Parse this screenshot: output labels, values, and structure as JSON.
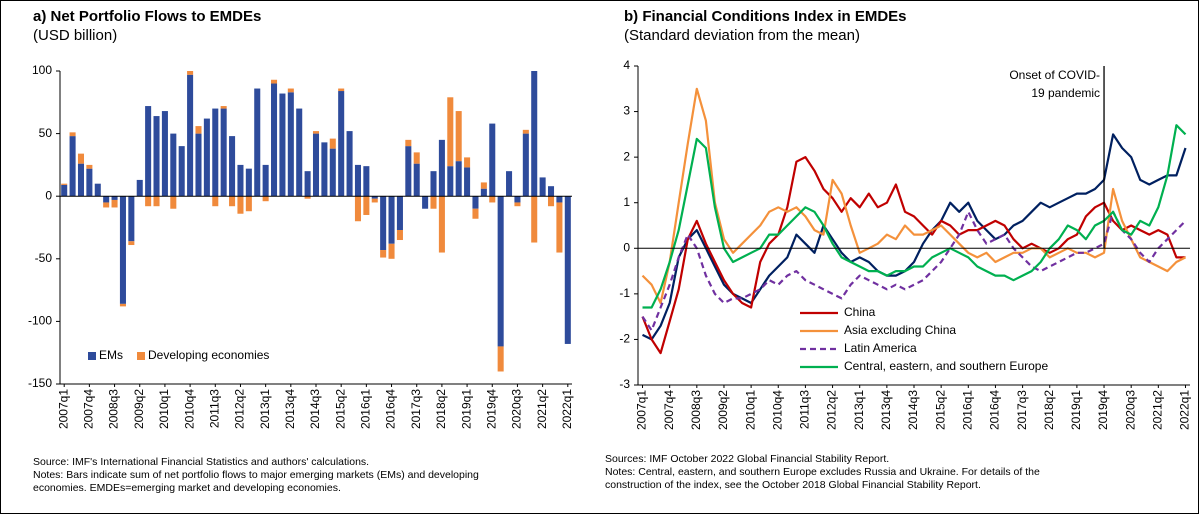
{
  "chart_data": [
    {
      "type": "stacked_bar",
      "title": "a) Net Portfolio Flows to EMDEs",
      "subtitle": "(USD billion)",
      "source": "Source: IMF's International Financial Statistics and authors' calculations.",
      "notes": "Notes: Bars indicate sum of net portfolio flows to major emerging markets (EMs) and developing economies. EMDEs=emerging market and developing economies.",
      "categories": [
        "2007q1",
        null,
        null,
        "2007q4",
        null,
        null,
        "2008q3",
        null,
        null,
        "2009q2",
        null,
        null,
        "2010q1",
        null,
        null,
        "2010q4",
        null,
        null,
        "2011q3",
        null,
        null,
        "2012q2",
        null,
        null,
        "2013q1",
        null,
        null,
        "2013q4",
        null,
        null,
        "2014q3",
        null,
        null,
        "2015q2",
        null,
        null,
        "2016q1",
        null,
        null,
        "2016q4",
        null,
        null,
        "2017q3",
        null,
        null,
        "2018q2",
        null,
        null,
        "2019q1",
        null,
        null,
        "2019q4",
        null,
        null,
        "2020q3",
        null,
        null,
        "2021q2",
        null,
        null,
        "2022q1"
      ],
      "series": [
        {
          "name": "EMs",
          "color": "#2e4b9b",
          "values": [
            9,
            48,
            26,
            22,
            10,
            -5,
            -3,
            -86,
            -36,
            13,
            72,
            64,
            68,
            50,
            40,
            97,
            50,
            62,
            70,
            70,
            48,
            25,
            22,
            86,
            25,
            90,
            82,
            83,
            70,
            20,
            50,
            43,
            38,
            84,
            52,
            25,
            24,
            -2,
            -43,
            -38,
            -27,
            40,
            26,
            -10,
            20,
            45,
            24,
            28,
            23,
            -10,
            6,
            58,
            -120,
            20,
            -5,
            50,
            100,
            15,
            8,
            -5,
            -118
          ]
        },
        {
          "name": "Developing economies",
          "color": "#f08a3c",
          "values": [
            1,
            3,
            8,
            3,
            0,
            -4,
            -6,
            -2,
            -3,
            0,
            -8,
            -8,
            0,
            -10,
            0,
            3,
            6,
            0,
            -8,
            2,
            -8,
            -14,
            -12,
            0,
            -4,
            3,
            0,
            3,
            0,
            -2,
            2,
            0,
            8,
            2,
            0,
            -20,
            -15,
            -3,
            -6,
            -12,
            -8,
            5,
            9,
            0,
            -10,
            -45,
            55,
            40,
            8,
            -8,
            5,
            -5,
            -20,
            0,
            -3,
            3,
            -37,
            0,
            -8,
            -40,
            0
          ]
        }
      ],
      "ylim": [
        -150,
        100
      ],
      "yticks": [
        -150,
        -100,
        -50,
        0,
        50,
        100
      ],
      "legend": "lower left"
    },
    {
      "type": "line",
      "title": "b) Financial Conditions Index in EMDEs",
      "subtitle": "(Standard deviation from the mean)",
      "source": "Sources: IMF October 2022 Global Financial Stability Report.",
      "notes": "Notes: Central, eastern, and southern Europe excludes Russia and Ukraine. For details of the construction of the index, see the October 2018 Global Financial Stability Report.",
      "categories": [
        "2007q1",
        null,
        null,
        "2007q4",
        null,
        null,
        "2008q3",
        null,
        null,
        "2009q2",
        null,
        null,
        "2010q1",
        null,
        null,
        "2010q4",
        null,
        null,
        "2011q3",
        null,
        null,
        "2012q2",
        null,
        null,
        "2013q1",
        null,
        null,
        "2013q4",
        null,
        null,
        "2014q3",
        null,
        null,
        "2015q2",
        null,
        null,
        "2016q1",
        null,
        null,
        "2016q4",
        null,
        null,
        "2017q3",
        null,
        null,
        "2018q2",
        null,
        null,
        "2019q1",
        null,
        null,
        "2019q4",
        null,
        null,
        "2020q3",
        null,
        null,
        "2021q2",
        null,
        null,
        "2022q1"
      ],
      "series": [
        {
          "color": "#002060",
          "values": [
            -1.9,
            -2.0,
            -1.7,
            -1.2,
            -0.2,
            0.2,
            0.4,
            0.0,
            -0.4,
            -0.8,
            -1.0,
            -1.1,
            -1.2,
            -0.9,
            -0.6,
            -0.4,
            -0.2,
            0.3,
            0.1,
            -0.1,
            0.5,
            0.2,
            -0.1,
            -0.3,
            -0.2,
            -0.3,
            -0.5,
            -0.6,
            -0.6,
            -0.5,
            -0.3,
            0.1,
            0.4,
            0.6,
            1.0,
            0.8,
            1.0,
            0.6,
            0.4,
            0.2,
            0.3,
            0.5,
            0.6,
            0.8,
            1.0,
            0.9,
            1.0,
            1.1,
            1.2,
            1.2,
            1.3,
            1.5,
            2.5,
            2.2,
            2.0,
            1.5,
            1.4,
            1.5,
            1.6,
            1.6,
            2.2
          ]
        },
        {
          "name": "China",
          "color": "#c00000",
          "values": [
            -1.5,
            -2.0,
            -2.3,
            -1.6,
            -0.9,
            0.2,
            0.6,
            0.1,
            -0.3,
            -0.7,
            -1.0,
            -1.2,
            -1.3,
            -0.3,
            0.1,
            0.3,
            0.9,
            1.9,
            2.0,
            1.7,
            1.3,
            1.1,
            0.8,
            1.1,
            0.9,
            1.2,
            0.9,
            1.0,
            1.4,
            0.8,
            0.7,
            0.5,
            0.3,
            0.6,
            0.5,
            0.3,
            0.4,
            0.4,
            0.5,
            0.6,
            0.5,
            0.2,
            0.0,
            0.1,
            0.0,
            -0.1,
            0.0,
            0.2,
            0.3,
            0.7,
            0.9,
            1.0,
            0.6,
            0.4,
            0.5,
            0.4,
            0.3,
            0.4,
            0.3,
            -0.2,
            -0.2
          ]
        },
        {
          "name": "Asia excluding China",
          "color": "#f4913b",
          "values": [
            -0.6,
            -0.8,
            -1.2,
            -0.3,
            1.0,
            2.3,
            3.5,
            2.8,
            1.0,
            0.2,
            -0.1,
            0.1,
            0.3,
            0.5,
            0.8,
            0.9,
            0.8,
            0.9,
            0.7,
            0.4,
            0.3,
            1.5,
            1.2,
            0.5,
            -0.1,
            0.0,
            0.1,
            0.3,
            0.2,
            0.5,
            0.3,
            0.3,
            0.4,
            0.5,
            0.3,
            0.1,
            -0.1,
            -0.2,
            -0.1,
            -0.3,
            -0.2,
            -0.1,
            -0.1,
            0.0,
            0.0,
            -0.2,
            -0.1,
            0.0,
            -0.1,
            -0.1,
            -0.2,
            -0.1,
            1.3,
            0.6,
            0.2,
            -0.2,
            -0.3,
            -0.4,
            -0.5,
            -0.3,
            -0.2
          ]
        },
        {
          "name": "Latin America",
          "color": "#7030a0",
          "dash": true,
          "values": [
            -1.5,
            -1.8,
            -1.3,
            -0.8,
            -0.2,
            0.3,
            0.0,
            -0.6,
            -1.0,
            -1.2,
            -1.1,
            -1.1,
            -1.0,
            -0.9,
            -0.7,
            -0.8,
            -0.6,
            -0.5,
            -0.7,
            -0.8,
            -0.9,
            -1.0,
            -1.1,
            -0.8,
            -0.6,
            -0.7,
            -0.8,
            -0.9,
            -0.8,
            -0.9,
            -0.8,
            -0.7,
            -0.5,
            -0.3,
            0.0,
            0.3,
            0.8,
            0.4,
            0.1,
            0.2,
            0.3,
            0.0,
            -0.2,
            -0.4,
            -0.5,
            -0.4,
            -0.3,
            -0.2,
            -0.1,
            -0.1,
            0.0,
            0.1,
            0.8,
            0.4,
            0.2,
            -0.1,
            -0.3,
            0.0,
            0.2,
            0.4,
            0.6
          ]
        },
        {
          "name": "Central, eastern, and southern Europe",
          "color": "#00b050",
          "values": [
            -1.3,
            -1.3,
            -0.9,
            -0.3,
            0.4,
            1.4,
            2.4,
            2.2,
            0.9,
            0.0,
            -0.3,
            -0.2,
            -0.1,
            0.0,
            0.3,
            0.3,
            0.5,
            0.7,
            0.9,
            0.8,
            0.5,
            0.1,
            -0.2,
            -0.3,
            -0.4,
            -0.5,
            -0.5,
            -0.6,
            -0.5,
            -0.5,
            -0.4,
            -0.4,
            -0.2,
            -0.1,
            0.0,
            -0.1,
            -0.2,
            -0.4,
            -0.5,
            -0.6,
            -0.6,
            -0.7,
            -0.6,
            -0.5,
            -0.3,
            0.0,
            0.2,
            0.5,
            0.4,
            0.2,
            0.5,
            0.6,
            0.8,
            0.4,
            0.3,
            0.6,
            0.5,
            0.9,
            1.6,
            2.7,
            2.5
          ]
        }
      ],
      "annotation": {
        "text": [
          "Onset of COVID-",
          "19 pandemic"
        ],
        "x": "2019q4"
      },
      "ylim": [
        -3,
        4
      ],
      "yticks": [
        -3,
        -2,
        -1,
        0,
        1,
        2,
        3,
        4
      ],
      "legend": "lower left"
    }
  ]
}
